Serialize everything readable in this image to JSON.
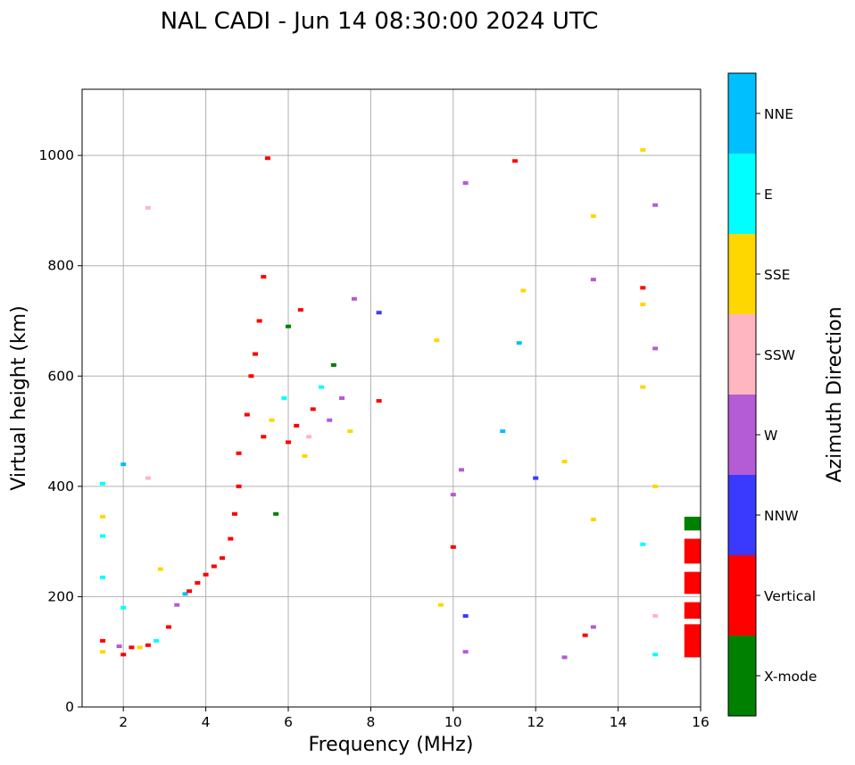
{
  "chart_data": {
    "type": "scatter",
    "title": "NAL CADI - Jun 14 08:30:00 2024 UTC",
    "xlabel": "Frequency (MHz)",
    "ylabel": "Virtual height (km)",
    "xlim": [
      1,
      16
    ],
    "ylim": [
      0,
      1120
    ],
    "xticks": [
      2,
      4,
      6,
      8,
      10,
      12,
      14,
      16
    ],
    "yticks": [
      0,
      200,
      400,
      600,
      800,
      1000
    ],
    "grid": true,
    "colorbar": {
      "label": "Azimuth Direction",
      "categories": [
        {
          "name": "X-mode",
          "color": "#008000"
        },
        {
          "name": "Vertical",
          "color": "#ff0000"
        },
        {
          "name": "NNW",
          "color": "#3a3aff"
        },
        {
          "name": "W",
          "color": "#b45bd6"
        },
        {
          "name": "SSW",
          "color": "#ffb6c1"
        },
        {
          "name": "SSE",
          "color": "#ffd700"
        },
        {
          "name": "E",
          "color": "#00ffff"
        },
        {
          "name": "NNE",
          "color": "#00bfff"
        }
      ]
    },
    "points": [
      {
        "f": 1.5,
        "h": 100,
        "c": "SSE"
      },
      {
        "f": 1.5,
        "h": 120,
        "c": "Vertical"
      },
      {
        "f": 1.5,
        "h": 235,
        "c": "E"
      },
      {
        "f": 1.5,
        "h": 310,
        "c": "E"
      },
      {
        "f": 1.5,
        "h": 345,
        "c": "SSE"
      },
      {
        "f": 1.5,
        "h": 405,
        "c": "E"
      },
      {
        "f": 1.9,
        "h": 110,
        "c": "W"
      },
      {
        "f": 2.0,
        "h": 95,
        "c": "Vertical"
      },
      {
        "f": 2.0,
        "h": 180,
        "c": "E"
      },
      {
        "f": 2.0,
        "h": 440,
        "c": "NNE"
      },
      {
        "f": 2.2,
        "h": 108,
        "c": "Vertical"
      },
      {
        "f": 2.4,
        "h": 108,
        "c": "SSE"
      },
      {
        "f": 2.6,
        "h": 112,
        "c": "Vertical"
      },
      {
        "f": 2.6,
        "h": 415,
        "c": "SSW"
      },
      {
        "f": 2.6,
        "h": 905,
        "c": "SSW"
      },
      {
        "f": 2.8,
        "h": 120,
        "c": "E"
      },
      {
        "f": 2.9,
        "h": 250,
        "c": "SSE"
      },
      {
        "f": 3.1,
        "h": 145,
        "c": "Vertical"
      },
      {
        "f": 3.3,
        "h": 185,
        "c": "W"
      },
      {
        "f": 3.5,
        "h": 205,
        "c": "NNE"
      },
      {
        "f": 3.6,
        "h": 210,
        "c": "Vertical"
      },
      {
        "f": 3.8,
        "h": 225,
        "c": "Vertical"
      },
      {
        "f": 4.0,
        "h": 240,
        "c": "Vertical"
      },
      {
        "f": 4.2,
        "h": 255,
        "c": "Vertical"
      },
      {
        "f": 4.4,
        "h": 270,
        "c": "Vertical"
      },
      {
        "f": 4.6,
        "h": 305,
        "c": "Vertical"
      },
      {
        "f": 4.7,
        "h": 350,
        "c": "Vertical"
      },
      {
        "f": 4.8,
        "h": 400,
        "c": "Vertical"
      },
      {
        "f": 4.8,
        "h": 460,
        "c": "Vertical"
      },
      {
        "f": 5.0,
        "h": 530,
        "c": "Vertical"
      },
      {
        "f": 5.1,
        "h": 600,
        "c": "Vertical"
      },
      {
        "f": 5.2,
        "h": 640,
        "c": "Vertical"
      },
      {
        "f": 5.3,
        "h": 700,
        "c": "Vertical"
      },
      {
        "f": 5.4,
        "h": 780,
        "c": "Vertical"
      },
      {
        "f": 5.5,
        "h": 995,
        "c": "Vertical"
      },
      {
        "f": 5.4,
        "h": 490,
        "c": "Vertical"
      },
      {
        "f": 5.6,
        "h": 520,
        "c": "SSE"
      },
      {
        "f": 5.7,
        "h": 350,
        "c": "X-mode"
      },
      {
        "f": 5.9,
        "h": 560,
        "c": "E"
      },
      {
        "f": 6.0,
        "h": 690,
        "c": "X-mode"
      },
      {
        "f": 6.0,
        "h": 480,
        "c": "Vertical"
      },
      {
        "f": 6.2,
        "h": 510,
        "c": "Vertical"
      },
      {
        "f": 6.3,
        "h": 720,
        "c": "Vertical"
      },
      {
        "f": 6.4,
        "h": 455,
        "c": "SSE"
      },
      {
        "f": 6.5,
        "h": 490,
        "c": "SSW"
      },
      {
        "f": 6.6,
        "h": 540,
        "c": "Vertical"
      },
      {
        "f": 6.8,
        "h": 580,
        "c": "E"
      },
      {
        "f": 7.0,
        "h": 520,
        "c": "W"
      },
      {
        "f": 7.1,
        "h": 620,
        "c": "X-mode"
      },
      {
        "f": 7.3,
        "h": 560,
        "c": "W"
      },
      {
        "f": 7.5,
        "h": 500,
        "c": "SSE"
      },
      {
        "f": 7.6,
        "h": 740,
        "c": "W"
      },
      {
        "f": 8.2,
        "h": 715,
        "c": "NNW"
      },
      {
        "f": 8.2,
        "h": 555,
        "c": "Vertical"
      },
      {
        "f": 9.6,
        "h": 665,
        "c": "SSE"
      },
      {
        "f": 9.7,
        "h": 185,
        "c": "SSE"
      },
      {
        "f": 10.0,
        "h": 385,
        "c": "W"
      },
      {
        "f": 10.0,
        "h": 290,
        "c": "Vertical"
      },
      {
        "f": 10.2,
        "h": 430,
        "c": "W"
      },
      {
        "f": 10.3,
        "h": 950,
        "c": "W"
      },
      {
        "f": 10.3,
        "h": 165,
        "c": "NNW"
      },
      {
        "f": 10.3,
        "h": 100,
        "c": "W"
      },
      {
        "f": 11.2,
        "h": 500,
        "c": "NNE"
      },
      {
        "f": 11.5,
        "h": 990,
        "c": "Vertical"
      },
      {
        "f": 11.6,
        "h": 660,
        "c": "NNE"
      },
      {
        "f": 11.7,
        "h": 755,
        "c": "SSE"
      },
      {
        "f": 12.0,
        "h": 415,
        "c": "NNW"
      },
      {
        "f": 12.7,
        "h": 445,
        "c": "SSE"
      },
      {
        "f": 12.7,
        "h": 90,
        "c": "W"
      },
      {
        "f": 13.4,
        "h": 890,
        "c": "SSE"
      },
      {
        "f": 13.4,
        "h": 775,
        "c": "W"
      },
      {
        "f": 13.4,
        "h": 340,
        "c": "SSE"
      },
      {
        "f": 13.4,
        "h": 145,
        "c": "W"
      },
      {
        "f": 13.2,
        "h": 130,
        "c": "Vertical"
      },
      {
        "f": 14.6,
        "h": 1010,
        "c": "SSE"
      },
      {
        "f": 14.6,
        "h": 730,
        "c": "SSE"
      },
      {
        "f": 14.6,
        "h": 580,
        "c": "SSE"
      },
      {
        "f": 14.6,
        "h": 295,
        "c": "E"
      },
      {
        "f": 14.6,
        "h": 760,
        "c": "Vertical"
      },
      {
        "f": 14.9,
        "h": 910,
        "c": "W"
      },
      {
        "f": 14.9,
        "h": 650,
        "c": "W"
      },
      {
        "f": 14.9,
        "h": 400,
        "c": "SSE"
      },
      {
        "f": 14.9,
        "h": 165,
        "c": "SSW"
      },
      {
        "f": 14.9,
        "h": 95,
        "c": "E"
      }
    ],
    "bars": [
      {
        "f": 15.8,
        "h0": 90,
        "h1": 150,
        "c": "Vertical"
      },
      {
        "f": 15.8,
        "h0": 160,
        "h1": 190,
        "c": "Vertical"
      },
      {
        "f": 15.8,
        "h0": 205,
        "h1": 245,
        "c": "Vertical"
      },
      {
        "f": 15.8,
        "h0": 260,
        "h1": 305,
        "c": "Vertical"
      },
      {
        "f": 15.8,
        "h0": 320,
        "h1": 345,
        "c": "X-mode"
      }
    ]
  }
}
